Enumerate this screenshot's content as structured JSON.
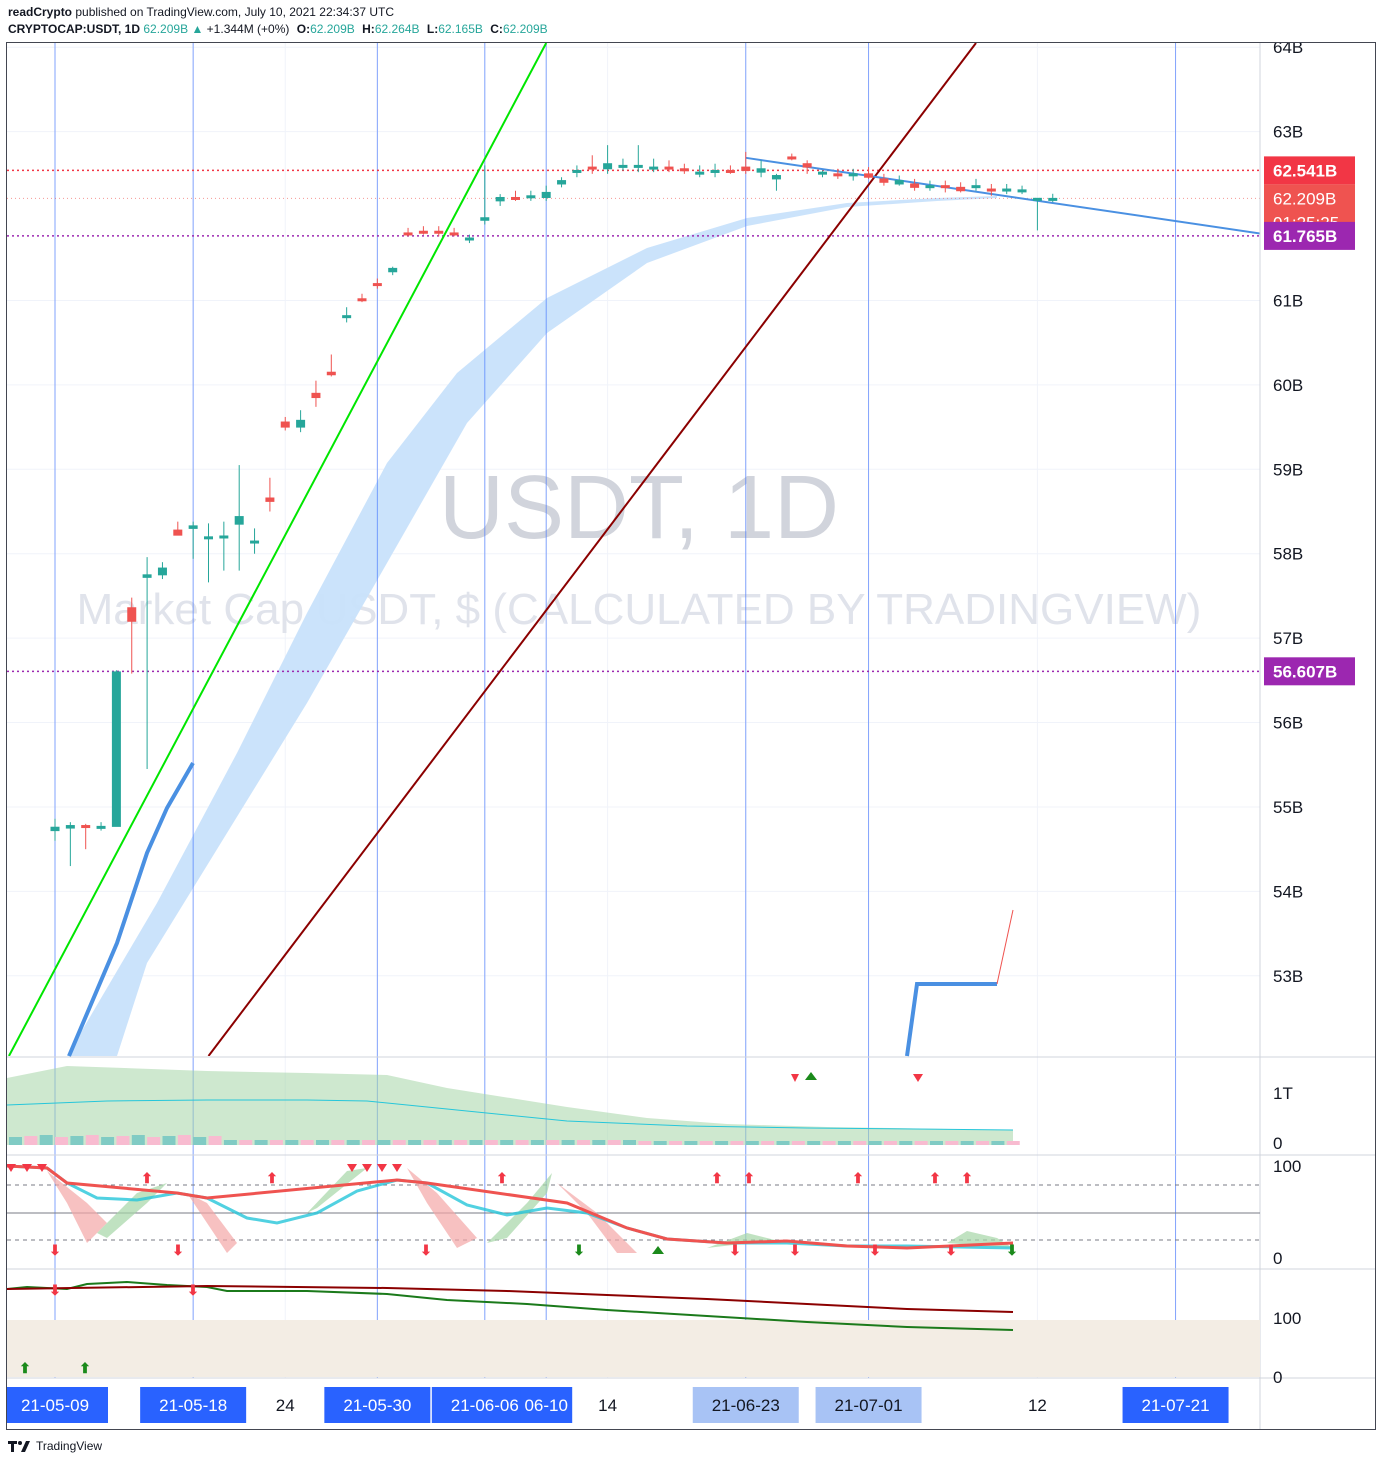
{
  "header": {
    "author": "readCrypto",
    "published_text": " published on TradingView.com, July 10, 2021 22:34:37 UTC",
    "symbol": "CRYPTOCAP:USDT, 1D",
    "last": "62.209B",
    "change_arrow": "▲",
    "change": "+1.344M (+0%)",
    "o_label": "O:",
    "o_val": "62.209B",
    "h_label": "H:",
    "h_val": "62.264B",
    "l_label": "L:",
    "l_val": "62.165B",
    "c_label": "C:",
    "c_val": "62.209B"
  },
  "watermark": {
    "title": "USDT, 1D",
    "subtitle": "Market Cap USDT, $ (CALCULATED BY TRADINGVIEW)"
  },
  "footer": {
    "logo_text": "TradingView",
    "logo_icon": "tradingview-logo-icon"
  },
  "colors": {
    "up": "#26a69a",
    "down": "#ef5350",
    "green_line": "#00e600",
    "dark_red_line": "#8b0000",
    "band": "#c8e1fb",
    "blue_line": "#4a90e2",
    "purple": "#9c27b0",
    "red_tag": "#f23645",
    "tag_blue": "#2962ff"
  },
  "chart_data": {
    "type": "candlestick",
    "title": "USDT, 1D",
    "price_axis": {
      "ticks": [
        {
          "v": 64,
          "t": "64B"
        },
        {
          "v": 63,
          "t": "63B"
        },
        {
          "v": 61,
          "t": "61B"
        },
        {
          "v": 60,
          "t": "60B"
        },
        {
          "v": 59,
          "t": "59B"
        },
        {
          "v": 58,
          "t": "58B"
        },
        {
          "v": 57,
          "t": "57B"
        },
        {
          "v": 56,
          "t": "56B"
        },
        {
          "v": 55,
          "t": "55B"
        },
        {
          "v": 54,
          "t": "54B"
        },
        {
          "v": 53,
          "t": "53B"
        }
      ],
      "unit": "B USD",
      "ylim": [
        52.05,
        64.05
      ]
    },
    "price_tags": [
      {
        "v": 62.541,
        "t": "62.541B",
        "color": "#f23645",
        "kind": "line",
        "line_color": "#f23645"
      },
      {
        "v": 62.209,
        "t": "62.209B",
        "sub": "01:25:25",
        "color": "#ef5350",
        "kind": "last"
      },
      {
        "v": 61.765,
        "t": "61.765B",
        "color": "#9c27b0",
        "kind": "line",
        "line_color": "#9c27b0"
      },
      {
        "v": 56.607,
        "t": "56.607B",
        "color": "#9c27b0",
        "kind": "line",
        "line_color": "#9c27b0"
      }
    ],
    "date_axis": {
      "labels": [
        {
          "d": "2021-05-09",
          "t": "21-05-09",
          "tag": true
        },
        {
          "d": "2021-05-18",
          "t": "21-05-18",
          "tag": true
        },
        {
          "d": "2021-05-24",
          "t": "24",
          "tag": false
        },
        {
          "d": "2021-05-30",
          "t": "21-05-30",
          "tag": true
        },
        {
          "d": "2021-06-06",
          "t": "21-06-06",
          "tag": true
        },
        {
          "d": "2021-06-10",
          "t": "06-10",
          "tag": true
        },
        {
          "d": "2021-06-14",
          "t": "14",
          "tag": false
        },
        {
          "d": "2021-06-23",
          "t": "21-06-23",
          "tag": true,
          "light": true
        },
        {
          "d": "2021-07-01",
          "t": "21-07-01",
          "tag": true,
          "light": true
        },
        {
          "d": "2021-07-12",
          "t": "12",
          "tag": false
        },
        {
          "d": "2021-07-21",
          "t": "21-07-21",
          "tag": true
        }
      ]
    },
    "vertical_markers": [
      "2021-05-09",
      "2021-05-18",
      "2021-05-30",
      "2021-06-06",
      "2021-06-10",
      "2021-06-23",
      "2021-07-01",
      "2021-07-21"
    ],
    "candles": [
      {
        "d": "2021-05-09",
        "o": 54.72,
        "h": 54.86,
        "l": 54.6,
        "c": 54.76
      },
      {
        "d": "2021-05-10",
        "o": 54.75,
        "h": 54.82,
        "l": 54.3,
        "c": 54.78
      },
      {
        "d": "2021-05-11",
        "o": 54.78,
        "h": 54.8,
        "l": 54.5,
        "c": 54.77
      },
      {
        "d": "2021-05-12",
        "o": 54.75,
        "h": 54.82,
        "l": 54.72,
        "c": 54.77
      },
      {
        "d": "2021-05-13",
        "o": 54.77,
        "h": 56.62,
        "l": 54.8,
        "c": 56.6
      },
      {
        "d": "2021-05-14",
        "o": 57.36,
        "h": 57.48,
        "l": 56.58,
        "c": 57.2
      },
      {
        "d": "2021-05-15",
        "o": 57.72,
        "h": 57.96,
        "l": 55.45,
        "c": 57.75
      },
      {
        "d": "2021-05-16",
        "o": 57.75,
        "h": 57.9,
        "l": 57.7,
        "c": 57.83
      },
      {
        "d": "2021-05-17",
        "o": 58.28,
        "h": 58.38,
        "l": 58.22,
        "c": 58.22
      },
      {
        "d": "2021-05-18",
        "o": 58.3,
        "h": 58.38,
        "l": 57.94,
        "c": 58.33
      },
      {
        "d": "2021-05-19",
        "o": 58.18,
        "h": 58.36,
        "l": 57.66,
        "c": 58.2
      },
      {
        "d": "2021-05-20",
        "o": 58.2,
        "h": 58.38,
        "l": 57.8,
        "c": 58.21
      },
      {
        "d": "2021-05-21",
        "o": 58.35,
        "h": 59.05,
        "l": 57.8,
        "c": 58.44
      },
      {
        "d": "2021-05-22",
        "o": 58.14,
        "h": 58.3,
        "l": 58.0,
        "c": 58.15
      },
      {
        "d": "2021-05-23",
        "o": 58.66,
        "h": 58.9,
        "l": 58.5,
        "c": 58.62
      },
      {
        "d": "2021-05-24",
        "o": 59.56,
        "h": 59.62,
        "l": 59.46,
        "c": 59.5
      },
      {
        "d": "2021-05-25",
        "o": 59.5,
        "h": 59.7,
        "l": 59.44,
        "c": 59.58
      },
      {
        "d": "2021-05-26",
        "o": 59.9,
        "h": 60.05,
        "l": 59.74,
        "c": 59.85
      },
      {
        "d": "2021-05-27",
        "o": 60.15,
        "h": 60.36,
        "l": 60.1,
        "c": 60.12
      },
      {
        "d": "2021-05-28",
        "o": 60.8,
        "h": 60.92,
        "l": 60.74,
        "c": 60.82
      },
      {
        "d": "2021-05-29",
        "o": 61.02,
        "h": 61.08,
        "l": 60.98,
        "c": 61.0
      },
      {
        "d": "2021-05-30",
        "o": 61.2,
        "h": 61.26,
        "l": 61.14,
        "c": 61.18
      },
      {
        "d": "2021-05-31",
        "o": 61.34,
        "h": 61.4,
        "l": 61.3,
        "c": 61.38
      },
      {
        "d": "2021-06-01",
        "o": 61.8,
        "h": 61.86,
        "l": 61.76,
        "c": 61.78
      },
      {
        "d": "2021-06-02",
        "o": 61.82,
        "h": 61.88,
        "l": 61.78,
        "c": 61.8
      },
      {
        "d": "2021-06-03",
        "o": 61.82,
        "h": 61.88,
        "l": 61.76,
        "c": 61.8
      },
      {
        "d": "2021-06-04",
        "o": 61.8,
        "h": 61.86,
        "l": 61.76,
        "c": 61.78
      },
      {
        "d": "2021-06-05",
        "o": 61.72,
        "h": 61.78,
        "l": 61.68,
        "c": 61.74
      },
      {
        "d": "2021-06-06",
        "o": 61.95,
        "h": 62.6,
        "l": 61.9,
        "c": 61.98
      },
      {
        "d": "2021-06-07",
        "o": 62.18,
        "h": 62.26,
        "l": 62.12,
        "c": 62.22
      },
      {
        "d": "2021-06-08",
        "o": 62.22,
        "h": 62.3,
        "l": 62.18,
        "c": 62.2
      },
      {
        "d": "2021-06-09",
        "o": 62.22,
        "h": 62.3,
        "l": 62.18,
        "c": 62.24
      },
      {
        "d": "2021-06-10",
        "o": 62.22,
        "h": 62.36,
        "l": 62.18,
        "c": 62.28
      },
      {
        "d": "2021-06-11",
        "o": 62.38,
        "h": 62.46,
        "l": 62.34,
        "c": 62.42
      },
      {
        "d": "2021-06-12",
        "o": 62.52,
        "h": 62.6,
        "l": 62.46,
        "c": 62.54
      },
      {
        "d": "2021-06-13",
        "o": 62.58,
        "h": 62.72,
        "l": 62.5,
        "c": 62.56
      },
      {
        "d": "2021-06-14",
        "o": 62.56,
        "h": 62.84,
        "l": 62.5,
        "c": 62.62
      },
      {
        "d": "2021-06-15",
        "o": 62.58,
        "h": 62.68,
        "l": 62.54,
        "c": 62.6
      },
      {
        "d": "2021-06-16",
        "o": 62.58,
        "h": 62.84,
        "l": 62.52,
        "c": 62.6
      },
      {
        "d": "2021-06-17",
        "o": 62.58,
        "h": 62.68,
        "l": 62.52,
        "c": 62.58
      },
      {
        "d": "2021-06-18",
        "o": 62.58,
        "h": 62.66,
        "l": 62.52,
        "c": 62.56
      },
      {
        "d": "2021-06-19",
        "o": 62.56,
        "h": 62.62,
        "l": 62.5,
        "c": 62.54
      },
      {
        "d": "2021-06-20",
        "o": 62.5,
        "h": 62.6,
        "l": 62.46,
        "c": 62.52
      },
      {
        "d": "2021-06-21",
        "o": 62.52,
        "h": 62.62,
        "l": 62.46,
        "c": 62.54
      },
      {
        "d": "2021-06-22",
        "o": 62.54,
        "h": 62.6,
        "l": 62.5,
        "c": 62.52
      },
      {
        "d": "2021-06-23",
        "o": 62.58,
        "h": 62.76,
        "l": 62.5,
        "c": 62.54
      },
      {
        "d": "2021-06-24",
        "o": 62.52,
        "h": 62.66,
        "l": 62.46,
        "c": 62.56
      },
      {
        "d": "2021-06-25",
        "o": 62.44,
        "h": 62.5,
        "l": 62.3,
        "c": 62.48
      },
      {
        "d": "2021-06-26",
        "o": 62.7,
        "h": 62.74,
        "l": 62.66,
        "c": 62.68
      },
      {
        "d": "2021-06-27",
        "o": 62.62,
        "h": 62.66,
        "l": 62.5,
        "c": 62.58
      },
      {
        "d": "2021-06-28",
        "o": 62.5,
        "h": 62.54,
        "l": 62.46,
        "c": 62.52
      },
      {
        "d": "2021-06-29",
        "o": 62.5,
        "h": 62.56,
        "l": 62.44,
        "c": 62.48
      },
      {
        "d": "2021-06-30",
        "o": 62.48,
        "h": 62.56,
        "l": 62.42,
        "c": 62.5
      },
      {
        "d": "2021-07-01",
        "o": 62.5,
        "h": 62.58,
        "l": 62.44,
        "c": 62.46
      },
      {
        "d": "2021-07-02",
        "o": 62.44,
        "h": 62.5,
        "l": 62.36,
        "c": 62.4
      },
      {
        "d": "2021-07-03",
        "o": 62.38,
        "h": 62.48,
        "l": 62.36,
        "c": 62.42
      },
      {
        "d": "2021-07-04",
        "o": 62.38,
        "h": 62.44,
        "l": 62.3,
        "c": 62.34
      },
      {
        "d": "2021-07-05",
        "o": 62.34,
        "h": 62.42,
        "l": 62.3,
        "c": 62.36
      },
      {
        "d": "2021-07-06",
        "o": 62.36,
        "h": 62.42,
        "l": 62.28,
        "c": 62.34
      },
      {
        "d": "2021-07-07",
        "o": 62.34,
        "h": 62.4,
        "l": 62.28,
        "c": 62.3
      },
      {
        "d": "2021-07-08",
        "o": 62.34,
        "h": 62.44,
        "l": 62.3,
        "c": 62.36
      },
      {
        "d": "2021-07-09",
        "o": 62.32,
        "h": 62.38,
        "l": 62.24,
        "c": 62.3
      },
      {
        "d": "2021-07-10",
        "o": 62.31,
        "h": 62.38,
        "l": 62.26,
        "c": 62.32
      },
      {
        "d": "2021-07-11",
        "o": 62.3,
        "h": 62.36,
        "l": 62.26,
        "c": 62.31
      },
      {
        "d": "2021-07-12",
        "o": 62.2,
        "h": 62.2,
        "l": 61.83,
        "c": 62.21
      },
      {
        "d": "2021-07-13",
        "o": 62.209,
        "h": 62.264,
        "l": 62.165,
        "c": 62.209
      }
    ],
    "trend_lines": [
      {
        "name": "green",
        "color": "#00e600",
        "points": [
          [
            "2021-05-06",
            52.05
          ],
          [
            "2021-06-10",
            64.05
          ]
        ]
      },
      {
        "name": "dark-red",
        "color": "#8b0000",
        "points": [
          [
            "2021-05-19",
            52.05
          ],
          [
            "2021-07-08",
            64.05
          ]
        ]
      },
      {
        "name": "blue-resistance",
        "color": "#4a90e2",
        "points": [
          [
            "2021-06-23",
            62.69
          ],
          [
            "2021-07-27",
            61.78
          ]
        ]
      }
    ],
    "indicator_panes": [
      {
        "name": "volume-pane",
        "ticks": [
          {
            "t": "1T"
          },
          {
            "t": "0"
          }
        ]
      },
      {
        "name": "oscillator-pane",
        "ticks": [
          {
            "t": "100"
          },
          {
            "t": "0"
          }
        ]
      },
      {
        "name": "trend-pane",
        "ticks": [
          {
            "t": "100"
          },
          {
            "t": "0"
          }
        ]
      }
    ]
  }
}
